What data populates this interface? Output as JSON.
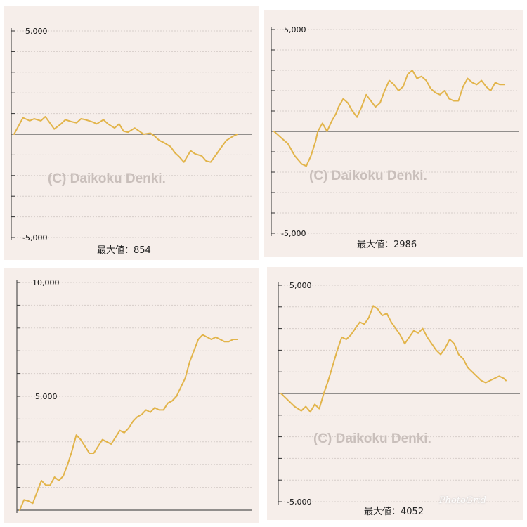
{
  "chart_data": [
    {
      "type": "line",
      "ylim": [
        -5000,
        5000
      ],
      "y_tick_labels": [
        "5,000",
        "-5,000"
      ],
      "y_tick_values": [
        5000,
        -5000
      ],
      "watermark": "(C) Daikoku Denki.",
      "caption": "最大値：854",
      "line_color": "#e2b44a",
      "grid": true,
      "series": [
        {
          "x": [
            0,
            2,
            4,
            7,
            9,
            12,
            14,
            16,
            18,
            21,
            23,
            26,
            28,
            30,
            32,
            35,
            37,
            40,
            42,
            45,
            47,
            49,
            51,
            54,
            56,
            58,
            61,
            63,
            65,
            67,
            70,
            72,
            74,
            76,
            79,
            81,
            84,
            86,
            88,
            91,
            93,
            95,
            98,
            100
          ],
          "values": [
            0,
            400,
            800,
            650,
            750,
            650,
            850,
            550,
            250,
            500,
            700,
            600,
            550,
            750,
            700,
            600,
            500,
            700,
            500,
            300,
            500,
            150,
            100,
            300,
            150,
            0,
            50,
            -100,
            -300,
            -400,
            -600,
            -900,
            -1100,
            -1350,
            -800,
            -950,
            -1050,
            -1300,
            -1350,
            -900,
            -600,
            -300,
            -100,
            0
          ]
        }
      ]
    },
    {
      "type": "line",
      "ylim": [
        -5000,
        5000
      ],
      "y_tick_labels": [
        "5,000",
        "-5,000"
      ],
      "y_tick_values": [
        5000,
        -5000
      ],
      "watermark": "(C) Daikoku Denki.",
      "caption": "最大値：2986",
      "line_color": "#e2b44a",
      "grid": true,
      "series": [
        {
          "x": [
            0,
            3,
            6,
            9,
            12,
            14,
            16,
            18,
            19,
            21,
            23,
            25,
            27,
            28,
            30,
            32,
            34,
            36,
            38,
            40,
            42,
            44,
            46,
            48,
            50,
            52,
            54,
            56,
            58,
            60,
            62,
            64,
            66,
            68,
            70,
            72,
            74,
            76,
            78,
            80,
            82,
            84,
            86,
            88,
            90,
            92,
            94,
            96,
            98,
            100
          ],
          "values": [
            0,
            -300,
            -600,
            -1200,
            -1600,
            -1700,
            -1200,
            -500,
            0,
            400,
            0,
            500,
            900,
            1200,
            1600,
            1400,
            1000,
            700,
            1200,
            1800,
            1500,
            1200,
            1400,
            2000,
            2500,
            2300,
            2000,
            2200,
            2800,
            3000,
            2600,
            2700,
            2500,
            2100,
            1900,
            1800,
            2000,
            1600,
            1500,
            1500,
            2200,
            2600,
            2400,
            2300,
            2500,
            2200,
            2000,
            2400,
            2300,
            2300
          ]
        }
      ]
    },
    {
      "type": "line",
      "ylim": [
        0,
        10000
      ],
      "y_tick_labels": [
        "10,000",
        "5,000"
      ],
      "y_tick_values": [
        10000,
        5000
      ],
      "watermark": "",
      "caption": "",
      "line_color": "#e2b44a",
      "grid": true,
      "series": [
        {
          "x": [
            0,
            2,
            4,
            6,
            8,
            10,
            12,
            14,
            16,
            18,
            20,
            22,
            24,
            26,
            28,
            30,
            32,
            34,
            36,
            38,
            40,
            42,
            44,
            46,
            48,
            50,
            52,
            54,
            56,
            58,
            60,
            62,
            64,
            66,
            68,
            70,
            72,
            74,
            76,
            78,
            80,
            82,
            84,
            86,
            88,
            90,
            92,
            94,
            96,
            98,
            100
          ],
          "values": [
            0,
            450,
            400,
            300,
            800,
            1300,
            1100,
            1100,
            1450,
            1300,
            1500,
            2000,
            2600,
            3300,
            3100,
            2800,
            2500,
            2500,
            2800,
            3100,
            3000,
            2900,
            3200,
            3500,
            3400,
            3600,
            3900,
            4100,
            4200,
            4400,
            4300,
            4500,
            4400,
            4400,
            4700,
            4800,
            5000,
            5400,
            5800,
            6500,
            7000,
            7500,
            7700,
            7600,
            7500,
            7600,
            7500,
            7400,
            7400,
            7500,
            7500
          ]
        }
      ]
    },
    {
      "type": "line",
      "ylim": [
        -5000,
        5000
      ],
      "y_tick_labels": [
        "5,000",
        "-5,000"
      ],
      "y_tick_values": [
        5000,
        -5000
      ],
      "watermark": "(C) Daikoku Denki.",
      "caption": "最大値：4052",
      "line_color": "#e2b44a",
      "grid": true,
      "series": [
        {
          "x": [
            0,
            3,
            6,
            9,
            11,
            13,
            15,
            17,
            19,
            21,
            23,
            25,
            27,
            29,
            31,
            33,
            35,
            37,
            39,
            41,
            43,
            45,
            47,
            49,
            51,
            53,
            55,
            57,
            59,
            61,
            63,
            65,
            67,
            69,
            71,
            73,
            75,
            77,
            79,
            81,
            83,
            85,
            87,
            89,
            91,
            93,
            95,
            97,
            99,
            100
          ],
          "values": [
            0,
            -300,
            -600,
            -800,
            -600,
            -850,
            -500,
            -700,
            0,
            600,
            1300,
            2000,
            2600,
            2500,
            2700,
            3000,
            3300,
            3200,
            3500,
            4050,
            3900,
            3600,
            3700,
            3300,
            3000,
            2700,
            2300,
            2600,
            2900,
            2800,
            3000,
            2600,
            2300,
            2000,
            1800,
            2100,
            2500,
            2300,
            1800,
            1600,
            1200,
            1000,
            800,
            600,
            500,
            600,
            700,
            800,
            700,
            600
          ]
        }
      ]
    }
  ],
  "app_credit": "PhotoGrid"
}
